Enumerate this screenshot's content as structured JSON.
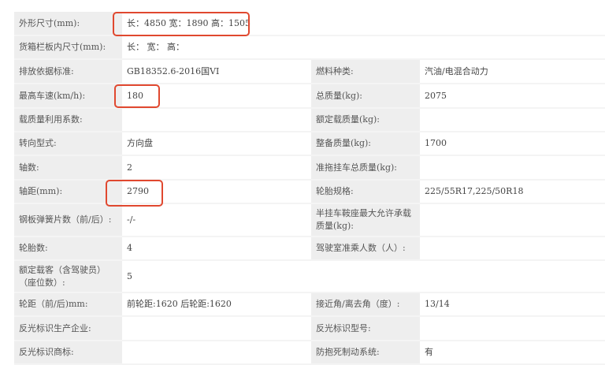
{
  "rows": [
    {
      "l1": "外形尺寸(mm):",
      "v1": "长：4850 宽：1890 高：1505"
    },
    {
      "l1": "货箱栏板内尺寸(mm):",
      "v1": "长： 宽： 高："
    },
    {
      "l1": "排放依据标准:",
      "v1": "GB18352.6-2016国VI",
      "l2": "燃料种类:",
      "v2": "汽油/电混合动力"
    },
    {
      "l1": "最高车速(km/h):",
      "v1": "180",
      "l2": "总质量(kg):",
      "v2": "2075"
    },
    {
      "l1": "载质量利用系数:",
      "v1": "",
      "l2": "额定载质量(kg):",
      "v2": ""
    },
    {
      "l1": "转向型式:",
      "v1": "方向盘",
      "l2": "整备质量(kg):",
      "v2": "1700"
    },
    {
      "l1": "轴数:",
      "v1": "2",
      "l2": "准拖挂车总质量(kg):",
      "v2": ""
    },
    {
      "l1": "轴距(mm):",
      "v1": "2790",
      "l2": "轮胎规格:",
      "v2": "225/55R17,225/50R18"
    },
    {
      "l1": "钢板弹簧片数（前/后）:",
      "v1": "-/-",
      "l2": "半挂车鞍座最大允许承载质量(kg):",
      "v2": ""
    },
    {
      "l1": "轮胎数:",
      "v1": "4",
      "l2": "驾驶室准乘人数（人）:",
      "v2": ""
    },
    {
      "l1": "额定载客（含驾驶员）（座位数）:",
      "v1": "5"
    },
    {
      "l1": "轮距（前/后)mm:",
      "v1": "前轮距:1620 后轮距:1620",
      "l2": "接近角/离去角（度）:",
      "v2": "13/14"
    },
    {
      "l1": "反光标识生产企业:",
      "v1": "",
      "l2": "反光标识型号:",
      "v2": ""
    },
    {
      "l1": "反光标识商标:",
      "v1": "",
      "l2": "防抱死制动系统:",
      "v2": "有"
    }
  ],
  "highlight_color": "#e0482f"
}
